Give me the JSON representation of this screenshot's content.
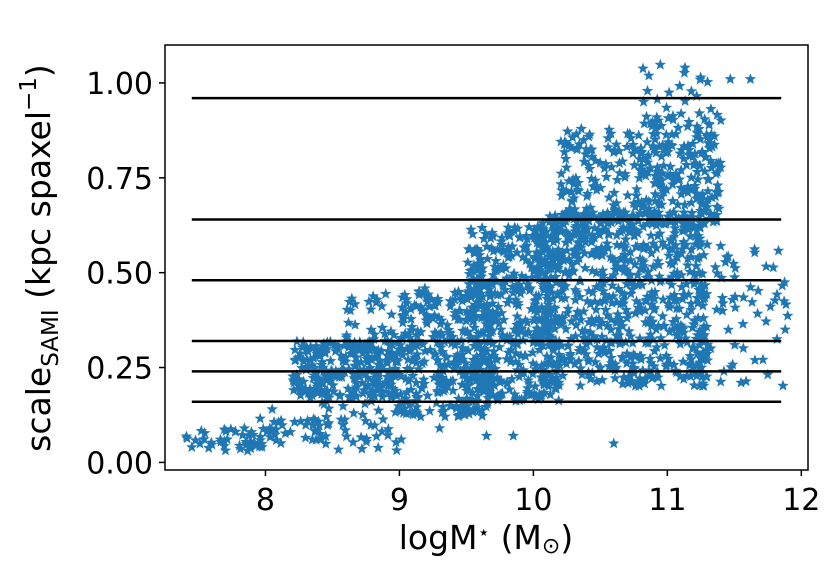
{
  "chart_data": {
    "type": "scatter",
    "xlabel": "logM⋆ (M⊙)",
    "xlabel_parts": {
      "base": "logM",
      "star": "⋆",
      "unit": "(M",
      "sun": "⊙",
      "close": ")"
    },
    "ylabel": "scaleSAMI (kpc spaxel−1)",
    "ylabel_parts": {
      "base": "scale",
      "sub": "SAMI",
      "unit": "(kpc spaxel",
      "sup": "−1",
      "close": ")"
    },
    "xlim": [
      7.25,
      12.05
    ],
    "ylim": [
      -0.02,
      1.1
    ],
    "x_ticks": [
      "8",
      "9",
      "10",
      "11",
      "12"
    ],
    "x_tick_values": [
      8,
      9,
      10,
      11,
      12
    ],
    "y_ticks": [
      "0.00",
      "0.25",
      "0.50",
      "0.75",
      "1.00"
    ],
    "y_tick_values": [
      0.0,
      0.25,
      0.5,
      0.75,
      1.0
    ],
    "hlines": {
      "y": [
        0.16,
        0.24,
        0.32,
        0.48,
        0.64,
        0.96
      ],
      "xmin": 7.45,
      "xmax": 11.85,
      "color": "#000000"
    },
    "marker": "star",
    "color": "#1f77b4",
    "grid": false,
    "legend": "none",
    "point_groups": [
      {
        "x": [
          7.4,
          8.1
        ],
        "y": [
          0.03,
          0.09
        ],
        "n": 45
      },
      {
        "x": [
          7.9,
          8.6
        ],
        "y": [
          0.05,
          0.12
        ],
        "n": 30
      },
      {
        "x": [
          8.2,
          9.0
        ],
        "y": [
          0.17,
          0.32
        ],
        "n": 260
      },
      {
        "x": [
          8.4,
          9.05
        ],
        "y": [
          0.03,
          0.17
        ],
        "n": 40
      },
      {
        "x": [
          8.6,
          9.0
        ],
        "y": [
          0.32,
          0.46
        ],
        "n": 25
      },
      {
        "x": [
          9.0,
          9.7
        ],
        "y": [
          0.12,
          0.46
        ],
        "n": 320
      },
      {
        "x": [
          9.5,
          10.2
        ],
        "y": [
          0.16,
          0.62
        ],
        "n": 420
      },
      {
        "x": [
          10.0,
          11.3
        ],
        "y": [
          0.2,
          0.66
        ],
        "n": 700
      },
      {
        "x": [
          10.2,
          10.8
        ],
        "y": [
          0.6,
          0.88
        ],
        "n": 140
      },
      {
        "x": [
          10.8,
          11.4
        ],
        "y": [
          0.62,
          0.92
        ],
        "n": 220
      },
      {
        "x": [
          10.8,
          11.4
        ],
        "y": [
          0.92,
          1.05
        ],
        "n": 18
      },
      {
        "x": [
          11.2,
          11.9
        ],
        "y": [
          0.2,
          0.58
        ],
        "n": 60
      }
    ],
    "outliers": [
      {
        "x": 11.47,
        "y": 1.01
      },
      {
        "x": 11.62,
        "y": 1.01
      },
      {
        "x": 11.88,
        "y": 0.35
      },
      {
        "x": 11.55,
        "y": 0.21
      },
      {
        "x": 10.6,
        "y": 0.05
      },
      {
        "x": 9.65,
        "y": 0.07
      },
      {
        "x": 9.85,
        "y": 0.07
      },
      {
        "x": 8.05,
        "y": 0.14
      },
      {
        "x": 8.35,
        "y": 0.06
      },
      {
        "x": 7.45,
        "y": 0.04
      },
      {
        "x": 11.3,
        "y": 0.31
      },
      {
        "x": 9.3,
        "y": 0.09
      }
    ]
  }
}
